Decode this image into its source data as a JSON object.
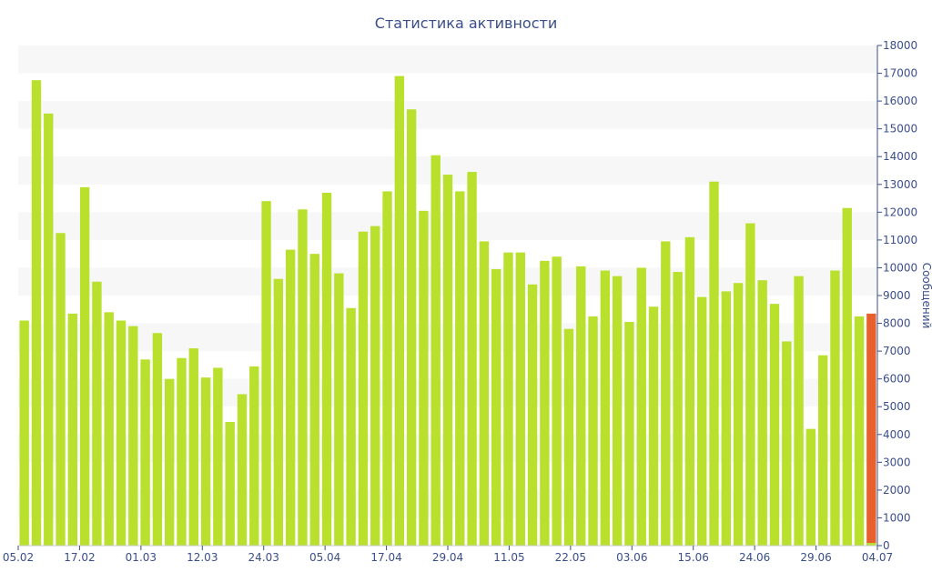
{
  "chart_data": {
    "type": "bar",
    "title": "Статистика активности",
    "xlabel": "",
    "ylabel": "Сообщений",
    "ylim": [
      0,
      18000
    ],
    "y_axis_position": "right",
    "y_ticks": [
      0,
      1000,
      2000,
      3000,
      4000,
      5000,
      6000,
      7000,
      8000,
      9000,
      10000,
      11000,
      12000,
      13000,
      14000,
      15000,
      16000,
      17000,
      18000
    ],
    "x_tick_labels": [
      "05.02",
      "17.02",
      "01.03",
      "12.03",
      "24.03",
      "05.04",
      "17.04",
      "29.04",
      "11.05",
      "22.05",
      "03.06",
      "15.06",
      "24.06",
      "29.06",
      "04.07"
    ],
    "grid": "alternating horizontal bands",
    "bar_color": "#b8e02c",
    "highlight_color": "#e8612c",
    "values": [
      8100,
      16750,
      15550,
      11250,
      8350,
      12900,
      9500,
      8400,
      8100,
      7900,
      6700,
      7650,
      6000,
      6750,
      7100,
      6050,
      6400,
      4450,
      5450,
      6450,
      12400,
      9600,
      10650,
      12100,
      10500,
      12700,
      9800,
      8550,
      11300,
      11500,
      12750,
      16900,
      15700,
      12050,
      14050,
      13350,
      12750,
      13450,
      10950,
      9950,
      10550,
      10550,
      9400,
      10250,
      10400,
      7800,
      10050,
      8250,
      9900,
      9700,
      8050,
      10000,
      8600,
      10950,
      9850,
      11100,
      8950,
      13100,
      9150,
      9450,
      11600,
      9550,
      8700,
      7350,
      9700,
      4200,
      6850,
      9900,
      12150,
      8250,
      8350
    ],
    "highlight_last": true
  }
}
